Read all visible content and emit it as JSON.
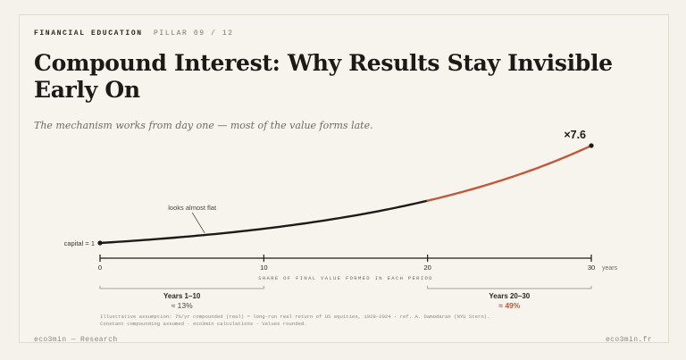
{
  "header": {
    "kicker": "FINANCIAL EDUCATION",
    "pillar": "PILLAR 09 / 12",
    "title": "Compound Interest: Why Results Stay Invisible Early On",
    "subtitle": "The mechanism works from day one — most of the value forms late."
  },
  "chart_data": {
    "type": "line",
    "x": [
      0,
      5,
      10,
      15,
      20,
      25,
      30
    ],
    "y": [
      1.0,
      1.4,
      1.97,
      2.76,
      3.87,
      5.43,
      7.6
    ],
    "highlight_from_x": 20,
    "xlim": [
      0,
      30
    ],
    "xticks": [
      "0",
      "10",
      "20",
      "30"
    ],
    "xunit": "years",
    "start_label": "capital = 1",
    "end_label": "×7.6",
    "annotation": "looks almost flat",
    "axis_caption": "SHARE OF FINAL VALUE FORMED IN EACH PERIOD",
    "periods": [
      {
        "label": "Years 1–10",
        "value": "≈ 13%",
        "range": [
          0,
          10
        ]
      },
      {
        "label": "Years 20–30",
        "value": "≈ 49%",
        "range": [
          20,
          30
        ]
      }
    ],
    "colors": {
      "early": "#1d1b18",
      "late": "#c2583a"
    }
  },
  "footnote": [
    "Illustrative assumption: 7%/yr compounded (real) ≈ long-run real return of US equities, 1928–2024 · ref. A. Damodaran (NYU Stern).",
    "Constant compounding assumed · eco3min calculations · Values rounded."
  ],
  "footer": {
    "left": "eco3min — Research",
    "right": "eco3min.fr"
  }
}
